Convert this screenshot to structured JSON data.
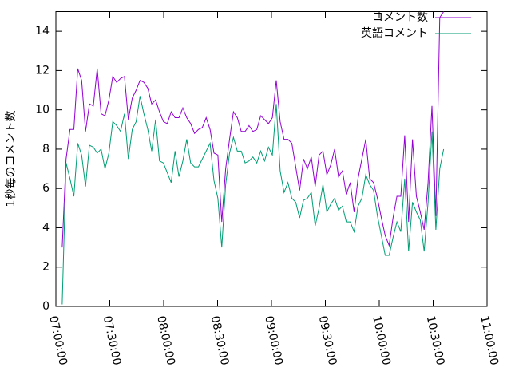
{
  "chart_data": {
    "type": "line",
    "ylabel": "1秒毎のコメント数",
    "x": [
      "07:03:30",
      "07:05:40",
      "07:07:50",
      "07:10:00",
      "07:12:10",
      "07:14:20",
      "07:16:30",
      "07:18:40",
      "07:20:50",
      "07:23:00",
      "07:25:10",
      "07:27:20",
      "07:29:30",
      "07:31:40",
      "07:33:50",
      "07:36:00",
      "07:38:10",
      "07:40:20",
      "07:42:30",
      "07:44:40",
      "07:46:50",
      "07:49:00",
      "07:51:10",
      "07:53:20",
      "07:55:30",
      "07:57:40",
      "07:59:50",
      "08:02:00",
      "08:04:10",
      "08:06:20",
      "08:08:30",
      "08:10:40",
      "08:12:50",
      "08:15:00",
      "08:17:10",
      "08:19:20",
      "08:21:30",
      "08:23:40",
      "08:25:50",
      "08:28:00",
      "08:30:10",
      "08:32:20",
      "08:34:30",
      "08:36:40",
      "08:38:50",
      "08:41:00",
      "08:43:10",
      "08:45:20",
      "08:47:30",
      "08:49:40",
      "08:51:50",
      "08:54:00",
      "08:56:10",
      "08:58:20",
      "09:00:30",
      "09:02:40",
      "09:04:50",
      "09:07:00",
      "09:09:10",
      "09:11:20",
      "09:13:30",
      "09:15:40",
      "09:17:50",
      "09:20:00",
      "09:22:10",
      "09:24:20",
      "09:26:30",
      "09:28:40",
      "09:30:50",
      "09:33:00",
      "09:35:10",
      "09:37:20",
      "09:39:30",
      "09:41:40",
      "09:43:50",
      "09:46:00",
      "09:48:10",
      "09:50:20",
      "09:52:30",
      "09:54:40",
      "09:56:50",
      "09:59:00",
      "10:01:10",
      "10:03:20",
      "10:05:30",
      "10:07:40",
      "10:09:50",
      "10:12:00",
      "10:14:10",
      "10:16:20",
      "10:18:30",
      "10:20:40",
      "10:22:50",
      "10:25:00",
      "10:27:10",
      "10:29:20",
      "10:31:30",
      "10:33:40",
      "10:35:50"
    ],
    "series": [
      {
        "name": "コメント数",
        "color": "#9400d3",
        "values": [
          3,
          7.5,
          9,
          9,
          12.1,
          11.5,
          8.9,
          10.3,
          10.2,
          12.1,
          9.8,
          9.7,
          10.5,
          11.7,
          11.4,
          11.6,
          11.7,
          9.5,
          10.6,
          11,
          11.5,
          11.4,
          11.1,
          10.3,
          10.5,
          9.9,
          9.4,
          9.3,
          9.9,
          9.6,
          9.6,
          10.1,
          9.6,
          9.3,
          8.8,
          9,
          9.1,
          9.6,
          9,
          7.8,
          7.7,
          4.3,
          7,
          8.5,
          9.9,
          9.6,
          8.9,
          8.9,
          9.2,
          8.9,
          9,
          9.7,
          9.5,
          9.3,
          9.6,
          11.5,
          9.4,
          8.5,
          8.5,
          8.3,
          7.1,
          5.9,
          7.5,
          7,
          7.6,
          6.1,
          7.7,
          7.9,
          6.7,
          7.2,
          8,
          6.6,
          6.9,
          5.7,
          6.3,
          4.8,
          6.5,
          7.5,
          8.5,
          6.5,
          6.3,
          5.5,
          4.5,
          3.6,
          3.1,
          4.5,
          5.6,
          5.6,
          8.7,
          4.3,
          8.5,
          5.6,
          4.8,
          3.9,
          6.3,
          10.2,
          4.6,
          14.7,
          15
        ]
      },
      {
        "name": "英語コメント",
        "color": "#009e73",
        "values": [
          0.1,
          7.3,
          6.5,
          5.6,
          8.3,
          7.7,
          6.1,
          8.2,
          8.1,
          7.8,
          8,
          7,
          7.8,
          9.4,
          9.2,
          8.9,
          9.8,
          7.5,
          9,
          9.4,
          10.7,
          9.8,
          9,
          7.9,
          9.5,
          7.4,
          7.3,
          6.8,
          6.3,
          7.9,
          6.6,
          7.4,
          8.5,
          7.3,
          7.1,
          7.1,
          7.5,
          7.9,
          8.3,
          6.4,
          5.5,
          3,
          6.2,
          7.8,
          8.6,
          7.9,
          7.9,
          7.3,
          7.4,
          7.6,
          7.3,
          7.9,
          7.4,
          8.1,
          7.7,
          10.3,
          6.9,
          5.8,
          6.3,
          5.5,
          5.3,
          4.5,
          5.4,
          5.5,
          5.8,
          4.1,
          5,
          6.2,
          4.8,
          5.2,
          5.5,
          4.9,
          5.1,
          4.3,
          4.3,
          3.8,
          5.1,
          5.5,
          6.7,
          6.2,
          5.9,
          4.6,
          3.6,
          2.6,
          2.6,
          3.5,
          4.3,
          3.8,
          6.5,
          2.8,
          5.3,
          4.8,
          4.4,
          2.8,
          5.3,
          8.9,
          3.9,
          7,
          8
        ]
      }
    ],
    "xlim": [
      "07:00:00",
      "11:00:00"
    ],
    "xticks": [
      "07:00:00",
      "07:30:00",
      "08:00:00",
      "08:30:00",
      "09:00:00",
      "09:30:00",
      "10:00:00",
      "10:30:00",
      "11:00:00"
    ],
    "ylim": [
      0,
      15
    ],
    "yticks": [
      0,
      2,
      4,
      6,
      8,
      10,
      12,
      14
    ],
    "grid": false,
    "legend": "top-right"
  }
}
